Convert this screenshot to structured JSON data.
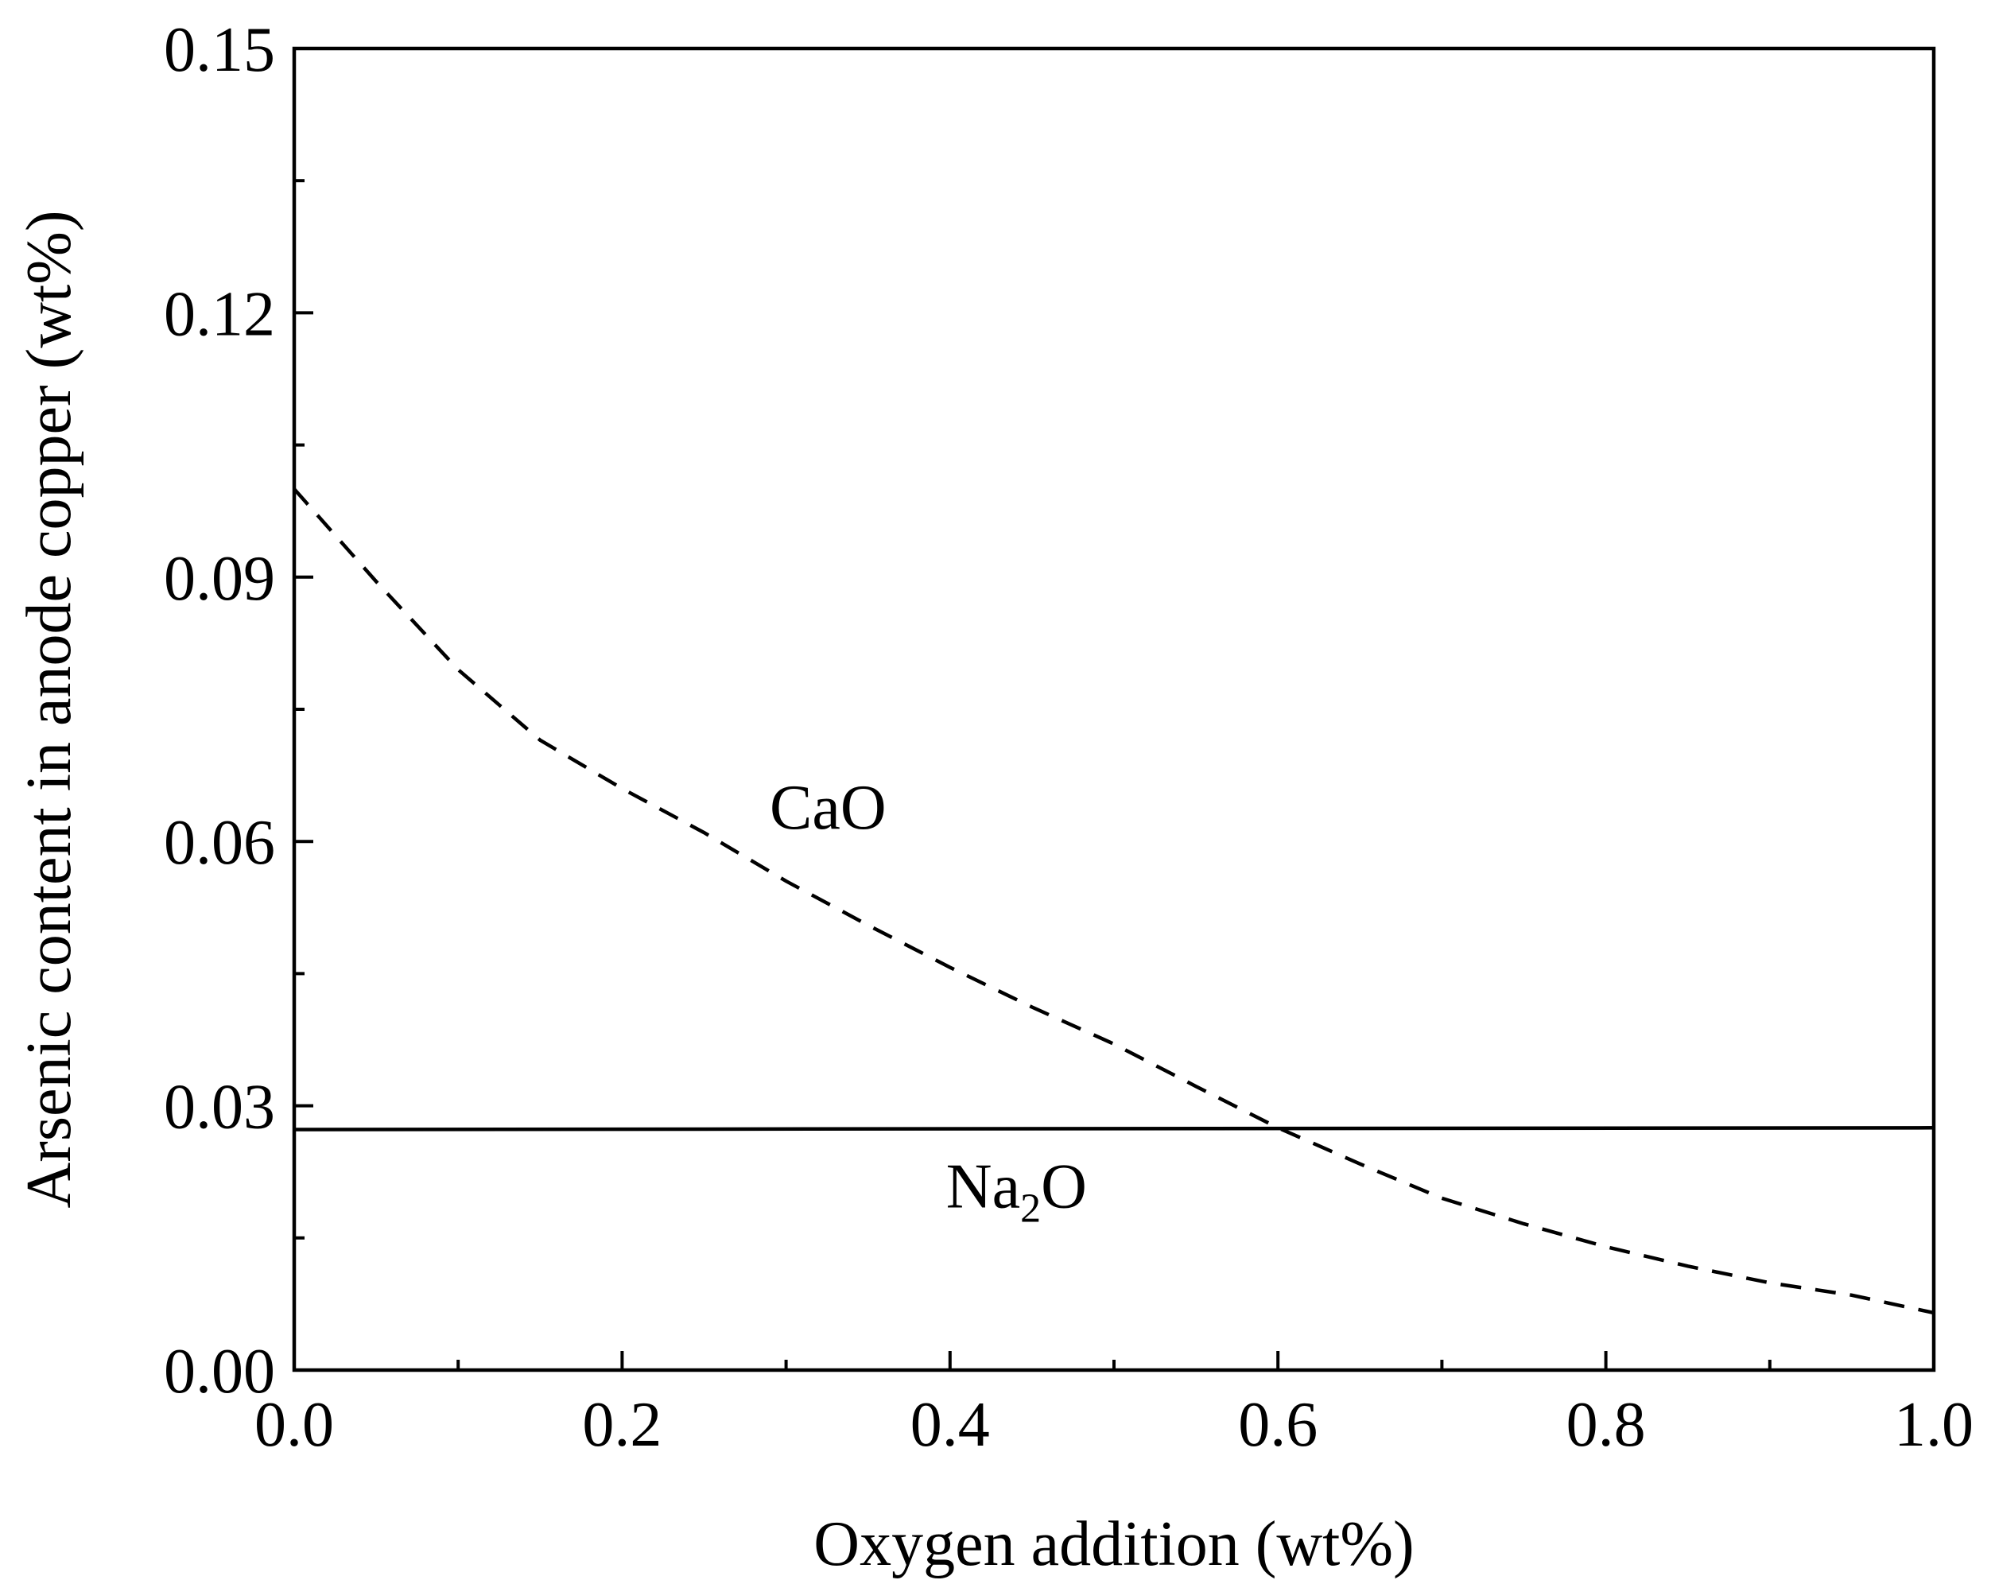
{
  "chart_data": {
    "type": "line",
    "title": "",
    "xlabel": "Oxygen addition (wt%)",
    "ylabel": "Arsenic content in anode copper (wt%)",
    "xlim": [
      0.0,
      1.0
    ],
    "ylim": [
      0.0,
      0.15
    ],
    "x_ticks": [
      "0.0",
      "0.2",
      "0.4",
      "0.6",
      "0.8",
      "1.0"
    ],
    "y_ticks": [
      "0.00",
      "0.03",
      "0.06",
      "0.09",
      "0.12",
      "0.15"
    ],
    "x_minor_step": 0.1,
    "y_minor_step": 0.015,
    "series": [
      {
        "name": "CaO",
        "style": "dashed",
        "x": [
          0.0,
          0.05,
          0.1,
          0.15,
          0.2,
          0.25,
          0.3,
          0.35,
          0.4,
          0.45,
          0.5,
          0.55,
          0.6,
          0.65,
          0.7,
          0.75,
          0.8,
          0.85,
          0.9,
          0.95,
          1.0
        ],
        "values": [
          0.1,
          0.0895,
          0.0795,
          0.0715,
          0.066,
          0.061,
          0.0555,
          0.0505,
          0.0457,
          0.0412,
          0.037,
          0.0322,
          0.0275,
          0.0234,
          0.0195,
          0.0166,
          0.014,
          0.0118,
          0.0099,
          0.0085,
          0.0065
        ]
      },
      {
        "name": "Na2O",
        "style": "solid",
        "x": [
          0.0,
          1.0
        ],
        "values": [
          0.0273,
          0.0275
        ]
      }
    ],
    "annotations": [
      {
        "text": "CaO",
        "x": 0.29,
        "y": 0.064
      },
      {
        "text_main": "Na",
        "text_sub": "2",
        "text_tail": "O",
        "x": 0.4,
        "y": 0.021
      }
    ]
  }
}
